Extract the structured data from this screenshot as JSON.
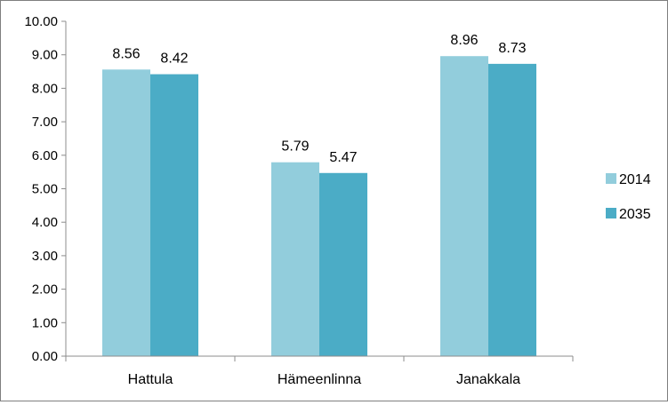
{
  "chart_data": {
    "type": "bar",
    "categories": [
      "Hattula",
      "Hämeenlinna",
      "Janakkala"
    ],
    "series": [
      {
        "name": "2014",
        "values": [
          8.56,
          5.79,
          8.96
        ],
        "color": "#92cddc"
      },
      {
        "name": "2035",
        "values": [
          8.42,
          5.47,
          8.73
        ],
        "color": "#4bacc6"
      }
    ],
    "ylim": [
      0,
      10
    ],
    "yticks": [
      "0.00",
      "1.00",
      "2.00",
      "3.00",
      "4.00",
      "5.00",
      "6.00",
      "7.00",
      "8.00",
      "9.00",
      "10.00"
    ],
    "data_labels": [
      [
        "8.56",
        "5.79",
        "8.96"
      ],
      [
        "8.42",
        "5.47",
        "8.73"
      ]
    ],
    "grid": false,
    "legend_position": "right"
  }
}
